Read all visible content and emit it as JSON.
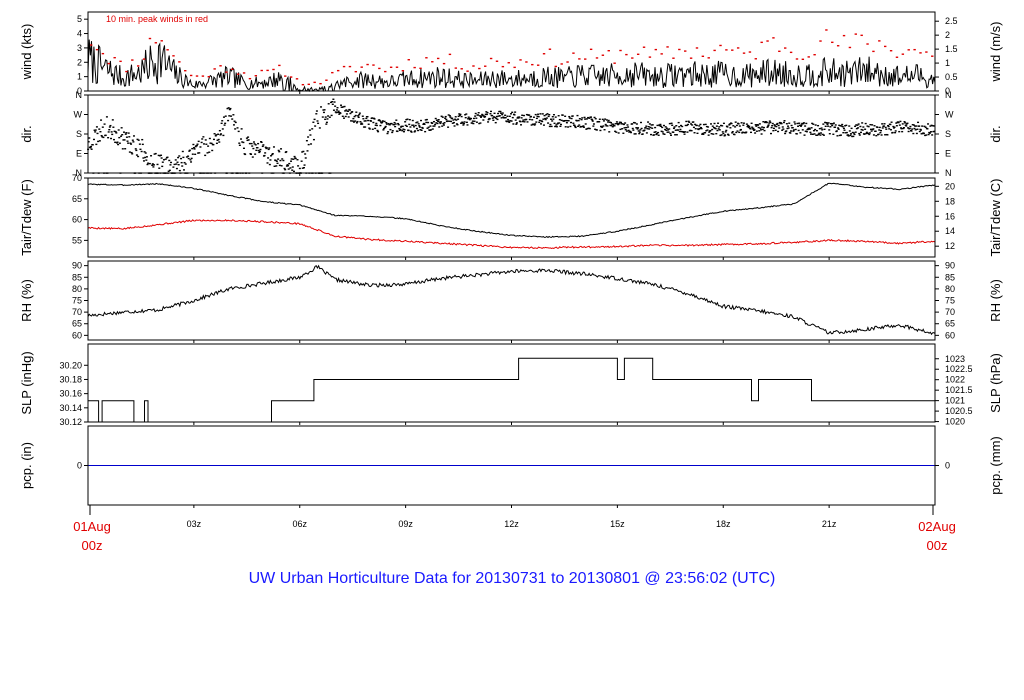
{
  "title": "UW Urban Horticulture Data for 20130731  to  20130801 @ 23:56:02  (UTC)",
  "colors": {
    "frame": "#000000",
    "primary": "#000000",
    "dewpoint": "#e00000",
    "peak": "#e00000",
    "precip": "#0000cc",
    "title": "#1a1aff",
    "date_labels": "#e00000"
  },
  "x_axis": {
    "start_label": [
      "01Aug",
      "00z"
    ],
    "end_label": [
      "02Aug",
      "00z"
    ],
    "ticks": [
      {
        "hour": 3,
        "label": "03z"
      },
      {
        "hour": 6,
        "label": "06z"
      },
      {
        "hour": 9,
        "label": "09z"
      },
      {
        "hour": 12,
        "label": "12z"
      },
      {
        "hour": 15,
        "label": "15z"
      },
      {
        "hour": 18,
        "label": "18z"
      },
      {
        "hour": 21,
        "label": "21z"
      }
    ]
  },
  "chart_data": [
    {
      "id": "wind",
      "type": "line",
      "ylabel": "wind (kts)",
      "ylabel_right": "wind (m/s)",
      "ylim": [
        0,
        5.5
      ],
      "yticks": [
        0,
        1,
        2,
        3,
        4,
        5
      ],
      "yticks_right": [
        0,
        0.5,
        1,
        1.5,
        2,
        2.5
      ],
      "annotation": "10 min. peak winds in red",
      "series": [
        {
          "role": "wind",
          "approx": true,
          "x_hours": [
            0,
            0.5,
            1,
            1.5,
            2,
            2.5,
            3,
            3.5,
            4,
            4.5,
            5,
            5.5,
            6,
            6.5,
            7,
            7.5,
            8,
            8.5,
            9,
            9.5,
            10,
            10.5,
            11,
            11.5,
            12,
            12.5,
            13,
            13.5,
            14,
            14.5,
            15,
            15.5,
            16,
            16.5,
            17,
            17.5,
            18,
            18.5,
            19,
            19.5,
            20,
            20.5,
            21,
            21.5,
            22,
            22.5,
            23,
            23.5,
            24
          ],
          "values": [
            2.2,
            1.5,
            0.9,
            1.3,
            2.4,
            1.1,
            0.4,
            0.7,
            1.0,
            0.5,
            0.6,
            0.9,
            0.2,
            0.1,
            0.4,
            0.7,
            0.8,
            0.6,
            0.8,
            0.9,
            1.0,
            0.8,
            0.7,
            0.9,
            0.8,
            0.9,
            1.0,
            0.9,
            1.1,
            1.0,
            1.1,
            1.2,
            1.0,
            1.1,
            1.2,
            1.1,
            1.2,
            1.0,
            1.2,
            1.3,
            1.1,
            1.2,
            1.3,
            1.2,
            1.4,
            1.2,
            1.0,
            1.1,
            0.8
          ]
        },
        {
          "role": "peak",
          "approx": true,
          "x_hours": [
            0,
            0.5,
            1,
            1.5,
            2,
            2.5,
            3,
            3.5,
            4,
            4.5,
            5,
            5.5,
            6,
            6.5,
            7,
            7.5,
            8,
            8.5,
            9,
            9.5,
            10,
            10.5,
            11,
            11.5,
            12,
            12.5,
            13,
            13.5,
            14,
            14.5,
            15,
            15.5,
            16,
            16.5,
            17,
            17.5,
            18,
            18.5,
            19,
            19.5,
            20,
            20.5,
            21,
            21.5,
            22,
            22.5,
            23,
            23.5,
            24
          ],
          "values": [
            3.9,
            2.6,
            1.6,
            2.3,
            4.1,
            2.1,
            0.9,
            1.3,
            1.8,
            1.1,
            1.2,
            1.5,
            0.6,
            0.5,
            1.2,
            1.6,
            1.8,
            1.5,
            1.9,
            2.1,
            2.2,
            1.9,
            1.7,
            2.1,
            1.9,
            2.2,
            2.4,
            2.1,
            2.5,
            2.2,
            2.6,
            2.8,
            2.3,
            2.6,
            2.9,
            2.6,
            3.0,
            2.4,
            2.9,
            3.4,
            2.8,
            3.1,
            3.6,
            3.1,
            3.5,
            3.2,
            2.8,
            2.9,
            2.2
          ]
        }
      ]
    },
    {
      "id": "direction",
      "type": "scatter",
      "ylabel": "dir.",
      "ylabel_right": "dir.",
      "ylim": [
        0,
        360
      ],
      "ytick_values": [
        0,
        90,
        180,
        270,
        360
      ],
      "ytick_labels": [
        "N",
        "E",
        "S",
        "W",
        "N"
      ],
      "series": [
        {
          "role": "direction",
          "approx": true,
          "x_hours": [
            0,
            0.5,
            1,
            1.5,
            2,
            2.5,
            3,
            3.5,
            4,
            4.5,
            5,
            5.5,
            6,
            6.5,
            7,
            7.5,
            8,
            8.5,
            9,
            9.5,
            10,
            10.5,
            11,
            11.5,
            12,
            12.5,
            13,
            13.5,
            14,
            14.5,
            15,
            15.5,
            16,
            16.5,
            17,
            17.5,
            18,
            18.5,
            19,
            19.5,
            20,
            20.5,
            21,
            21.5,
            22,
            22.5,
            23,
            23.5,
            24
          ],
          "values": [
            135,
            220,
            160,
            110,
            40,
            30,
            110,
            140,
            260,
            120,
            100,
            60,
            20,
            250,
            300,
            260,
            230,
            210,
            220,
            215,
            235,
            245,
            255,
            260,
            255,
            250,
            245,
            240,
            235,
            225,
            215,
            210,
            205,
            200,
            210,
            205,
            200,
            210,
            205,
            215,
            210,
            200,
            205,
            195,
            205,
            200,
            210,
            205,
            200
          ]
        }
      ]
    },
    {
      "id": "temperature",
      "type": "line",
      "ylabel": "Tair/Tdew (F)",
      "ylabel_right": "Tair/Tdew (C)",
      "ylim": [
        51,
        70
      ],
      "yticks": [
        55,
        60,
        65,
        70
      ],
      "yticks_right": [
        12,
        14,
        16,
        18,
        20
      ],
      "series": [
        {
          "role": "air temperature",
          "approx": true,
          "x_hours": [
            0,
            1,
            2,
            3,
            4,
            5,
            6,
            7,
            8,
            9,
            10,
            11,
            12,
            13,
            14,
            15,
            16,
            17,
            18,
            19,
            20,
            21,
            22,
            23,
            24
          ],
          "values": [
            68.5,
            68.3,
            68.6,
            67.5,
            65.8,
            64.3,
            63.5,
            61.0,
            60.8,
            60.2,
            58.5,
            57.2,
            56.2,
            55.8,
            56.0,
            57.2,
            58.8,
            60.5,
            62.0,
            62.8,
            63.8,
            68.8,
            67.8,
            67.3,
            68.3
          ]
        },
        {
          "role": "dew point",
          "approx": true,
          "x_hours": [
            0,
            1,
            2,
            3,
            4,
            5,
            6,
            7,
            8,
            9,
            10,
            11,
            12,
            13,
            14,
            15,
            16,
            17,
            18,
            19,
            20,
            21,
            22,
            23,
            24
          ],
          "values": [
            58.0,
            57.8,
            58.8,
            59.8,
            59.8,
            59.5,
            59.0,
            56.0,
            55.2,
            54.8,
            54.3,
            53.8,
            53.3,
            53.2,
            53.4,
            53.5,
            53.8,
            53.8,
            54.0,
            54.2,
            54.5,
            55.0,
            54.8,
            54.3,
            54.8
          ]
        }
      ]
    },
    {
      "id": "humidity",
      "type": "line",
      "ylabel": "RH (%)",
      "ylabel_right": "RH (%)",
      "ylim": [
        58,
        92
      ],
      "yticks": [
        60,
        65,
        70,
        75,
        80,
        85,
        90
      ],
      "yticks_right": [
        60,
        65,
        70,
        75,
        80,
        85,
        90
      ],
      "series": [
        {
          "role": "relative humidity",
          "approx": true,
          "x_hours": [
            0,
            1,
            2,
            3,
            4,
            5,
            6,
            6.5,
            7,
            8,
            9,
            10,
            11,
            12,
            13,
            14,
            15,
            16,
            17,
            18,
            19,
            20,
            21,
            22,
            23,
            24
          ],
          "values": [
            68.5,
            70.0,
            71.0,
            75.0,
            80.0,
            82.5,
            85.0,
            89.5,
            84.0,
            81.5,
            82.0,
            84.5,
            86.0,
            87.5,
            88.0,
            86.5,
            84.5,
            82.0,
            78.0,
            72.5,
            70.5,
            68.0,
            61.0,
            62.5,
            64.5,
            60.5
          ]
        }
      ]
    },
    {
      "id": "pressure",
      "type": "line",
      "ylabel": "SLP (inHg)",
      "ylabel_right": "SLP (hPa)",
      "ylim": [
        30.12,
        30.23
      ],
      "yticks": [
        30.12,
        30.14,
        30.16,
        30.18,
        30.2
      ],
      "ytick_labels": [
        "30.12",
        "30.14",
        "30.16",
        "30.18",
        "30.20"
      ],
      "yticks_right": [
        1020,
        1020.5,
        1021,
        1021.5,
        1022,
        1022.5,
        1023
      ],
      "series": [
        {
          "role": "sea level pressure",
          "step": true,
          "x_hours": [
            0,
            0.3,
            0.4,
            1.3,
            1.6,
            1.7,
            5.2,
            6.4,
            12.2,
            15.0,
            15.2,
            16.0,
            18.8,
            19.0,
            20.5,
            24
          ],
          "values": [
            30.15,
            30.12,
            30.15,
            30.12,
            30.15,
            30.12,
            30.15,
            30.18,
            30.21,
            30.18,
            30.21,
            30.18,
            30.15,
            30.18,
            30.15,
            30.15
          ]
        }
      ]
    },
    {
      "id": "precipitation",
      "type": "line",
      "ylabel": "pcp. (in)",
      "ylabel_right": "pcp. (mm)",
      "ylim": [
        -1,
        1
      ],
      "yticks": [
        0
      ],
      "yticks_right": [
        0
      ],
      "series": [
        {
          "role": "precipitation",
          "x_hours": [
            0,
            24
          ],
          "values": [
            0,
            0
          ]
        }
      ]
    }
  ]
}
